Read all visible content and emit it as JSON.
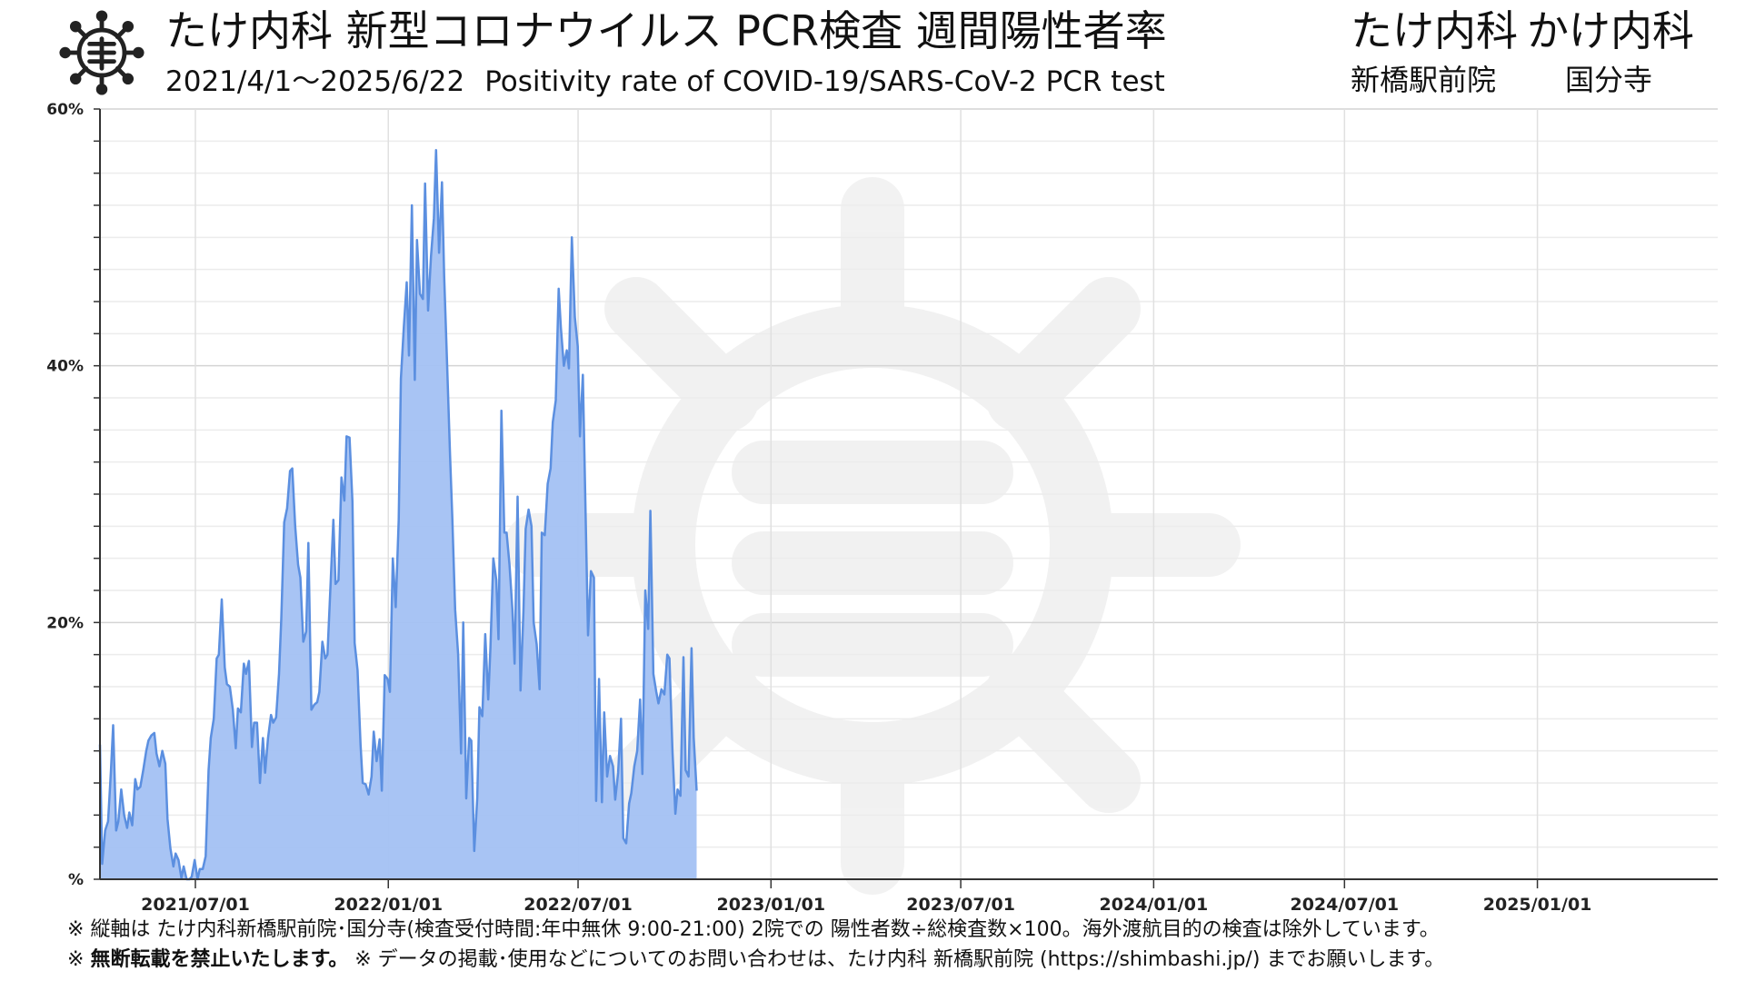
{
  "header": {
    "title": "たけ内科 新型コロナウイルス PCR検査 週間陽性者率",
    "date_range": "2021/4/1〜2025/6/22",
    "title_en": "Positivity rate of COVID-19/SARS-CoV-2 PCR test",
    "clinic1_name": "たけ内科",
    "clinic2_name": "かけ内科",
    "clinic1_branch": "新橋駅前院",
    "clinic2_branch": "国分寺",
    "logo_icon": "virus-logo-icon"
  },
  "footer": {
    "note1": "※ 縦軸は たけ内科新橋駅前院･国分寺(検査受付時間:年中無休 9:00-21:00) 2院での 陽性者数÷総検査数×100。海外渡航目的の検査は除外しています。",
    "note2_prefix": "※ ",
    "note2_bold": "無断転載を禁止いたします。",
    "note2_rest": " ※ データの掲載･使用などについてのお問い合わせは、たけ内科 新橋駅前院 (https://shimbashi.jp/) までお願いします。"
  },
  "chart_data": {
    "type": "area",
    "title": "たけ内科 新型コロナウイルス PCR検査 週間陽性者率",
    "xlabel": "",
    "ylabel": "",
    "x_range": [
      "2021-04-01",
      "2025-06-22"
    ],
    "ylim": [
      0,
      60
    ],
    "y_ticks": [
      0,
      20,
      40,
      60
    ],
    "y_tick_labels": [
      "%",
      "20%",
      "40%",
      "60%"
    ],
    "x_ticks": [
      "2021-07-01",
      "2022-01-01",
      "2022-07-01",
      "2023-01-01",
      "2023-07-01",
      "2024-01-01",
      "2024-07-01",
      "2025-01-01"
    ],
    "x_tick_labels": [
      "2021/07/01",
      "2022/01/01",
      "2022/07/01",
      "2023/01/01",
      "2023/07/01",
      "2024/01/01",
      "2024/07/01",
      "2025/01/01"
    ],
    "grid": true,
    "legend": "none",
    "colors": {
      "line": "#5b8fe0",
      "fill": "#a3c1f3",
      "grid": "#e3e3e3"
    },
    "series": [
      {
        "values": [
          [
            0.0,
            10.5
          ],
          [
            0.3,
            1.2
          ],
          [
            0.7,
            3.8
          ],
          [
            1.1,
            4.5
          ],
          [
            1.5,
            8.5
          ],
          [
            1.8,
            12.0
          ],
          [
            2.2,
            3.8
          ],
          [
            2.5,
            4.5
          ],
          [
            2.9,
            7.0
          ],
          [
            3.3,
            5.0
          ],
          [
            3.7,
            4.0
          ],
          [
            4.0,
            5.2
          ],
          [
            4.4,
            4.2
          ],
          [
            4.8,
            7.8
          ],
          [
            5.1,
            7.0
          ],
          [
            5.5,
            7.2
          ],
          [
            5.9,
            8.5
          ],
          [
            6.3,
            10.0
          ],
          [
            6.6,
            10.8
          ],
          [
            7.0,
            11.2
          ],
          [
            7.4,
            11.4
          ],
          [
            7.7,
            9.8
          ],
          [
            8.1,
            8.8
          ],
          [
            8.5,
            10.0
          ],
          [
            8.9,
            9.0
          ],
          [
            9.2,
            4.7
          ],
          [
            9.6,
            2.4
          ],
          [
            10.0,
            1.0
          ],
          [
            10.3,
            2.0
          ],
          [
            10.7,
            1.5
          ],
          [
            11.1,
            0.1
          ],
          [
            11.4,
            1.0
          ],
          [
            11.8,
            0.0
          ],
          [
            12.2,
            0.0
          ],
          [
            12.5,
            0.2
          ],
          [
            12.9,
            1.5
          ],
          [
            13.3,
            0.0
          ],
          [
            13.6,
            0.8
          ],
          [
            14.0,
            0.8
          ],
          [
            14.4,
            1.8
          ],
          [
            14.8,
            8.5
          ],
          [
            15.1,
            11.0
          ],
          [
            15.5,
            12.5
          ],
          [
            15.9,
            17.2
          ],
          [
            16.2,
            17.5
          ],
          [
            16.6,
            21.8
          ],
          [
            17.0,
            16.5
          ],
          [
            17.3,
            15.2
          ],
          [
            17.7,
            15.0
          ],
          [
            18.1,
            13.2
          ],
          [
            18.5,
            10.2
          ],
          [
            18.8,
            13.3
          ],
          [
            19.2,
            13.0
          ],
          [
            19.6,
            16.8
          ],
          [
            19.9,
            16.0
          ],
          [
            20.3,
            17.0
          ],
          [
            20.7,
            10.3
          ],
          [
            21.0,
            12.2
          ],
          [
            21.4,
            12.2
          ],
          [
            21.8,
            7.5
          ],
          [
            22.2,
            11.0
          ],
          [
            22.5,
            8.3
          ],
          [
            22.9,
            11.0
          ],
          [
            23.3,
            12.8
          ],
          [
            23.6,
            12.2
          ],
          [
            24.0,
            12.6
          ],
          [
            24.4,
            16.0
          ],
          [
            24.7,
            20.3
          ],
          [
            25.1,
            27.8
          ],
          [
            25.5,
            28.9
          ],
          [
            25.9,
            31.8
          ],
          [
            26.2,
            32.0
          ],
          [
            26.6,
            27.5
          ],
          [
            27.0,
            24.5
          ],
          [
            27.3,
            23.5
          ],
          [
            27.7,
            18.5
          ],
          [
            28.1,
            19.3
          ],
          [
            28.4,
            26.2
          ],
          [
            28.8,
            13.2
          ],
          [
            29.2,
            13.6
          ],
          [
            29.6,
            13.8
          ],
          [
            29.9,
            14.6
          ],
          [
            30.3,
            18.5
          ],
          [
            30.7,
            17.2
          ],
          [
            31.0,
            17.5
          ],
          [
            31.4,
            22.8
          ],
          [
            31.8,
            28.0
          ],
          [
            32.1,
            23.0
          ],
          [
            32.5,
            23.3
          ],
          [
            32.9,
            31.3
          ],
          [
            33.3,
            29.5
          ],
          [
            33.6,
            34.5
          ],
          [
            34.0,
            34.4
          ],
          [
            34.4,
            29.4
          ],
          [
            34.7,
            18.4
          ],
          [
            35.1,
            16.3
          ],
          [
            35.5,
            10.5
          ],
          [
            35.8,
            7.5
          ],
          [
            36.2,
            7.4
          ],
          [
            36.6,
            6.6
          ],
          [
            37.0,
            8.0
          ],
          [
            37.3,
            11.5
          ],
          [
            37.7,
            9.2
          ],
          [
            38.1,
            10.9
          ],
          [
            38.4,
            6.9
          ],
          [
            38.8,
            15.9
          ],
          [
            39.2,
            15.6
          ],
          [
            39.5,
            14.6
          ],
          [
            39.9,
            25.0
          ],
          [
            40.3,
            21.2
          ],
          [
            40.7,
            28.0
          ],
          [
            41.0,
            39.0
          ],
          [
            41.4,
            43.0
          ],
          [
            41.8,
            46.5
          ],
          [
            42.1,
            40.8
          ],
          [
            42.5,
            52.5
          ],
          [
            42.9,
            38.9
          ],
          [
            43.2,
            49.8
          ],
          [
            43.6,
            45.6
          ],
          [
            44.0,
            45.2
          ],
          [
            44.3,
            54.2
          ],
          [
            44.7,
            44.3
          ],
          [
            45.1,
            48.5
          ],
          [
            45.5,
            51.5
          ],
          [
            45.8,
            56.8
          ],
          [
            46.2,
            48.8
          ],
          [
            46.6,
            54.3
          ],
          [
            46.9,
            47.0
          ],
          [
            47.3,
            40.0
          ],
          [
            47.7,
            33.0
          ],
          [
            48.0,
            28.3
          ],
          [
            48.4,
            21.0
          ],
          [
            48.8,
            17.5
          ],
          [
            49.2,
            9.8
          ],
          [
            49.5,
            20.0
          ],
          [
            49.9,
            6.3
          ],
          [
            50.3,
            11.0
          ],
          [
            50.6,
            10.8
          ],
          [
            51.0,
            2.2
          ],
          [
            51.4,
            6.3
          ],
          [
            51.7,
            13.4
          ],
          [
            52.1,
            12.7
          ],
          [
            52.5,
            19.1
          ],
          [
            52.9,
            14.0
          ],
          [
            53.2,
            18.0
          ],
          [
            53.6,
            25.0
          ],
          [
            54.0,
            23.3
          ],
          [
            54.3,
            18.7
          ],
          [
            54.7,
            36.5
          ],
          [
            55.1,
            27.0
          ],
          [
            55.4,
            27.0
          ],
          [
            55.8,
            24.5
          ],
          [
            56.2,
            21.0
          ],
          [
            56.5,
            16.8
          ],
          [
            56.9,
            29.8
          ],
          [
            57.3,
            14.7
          ],
          [
            57.7,
            20.8
          ],
          [
            58.0,
            27.3
          ],
          [
            58.4,
            28.8
          ],
          [
            58.8,
            27.5
          ],
          [
            59.1,
            20.0
          ],
          [
            59.5,
            18.3
          ],
          [
            59.9,
            14.8
          ],
          [
            60.2,
            27.0
          ],
          [
            60.6,
            26.8
          ],
          [
            61.0,
            30.8
          ],
          [
            61.4,
            32.0
          ],
          [
            61.7,
            35.6
          ],
          [
            62.1,
            37.3
          ],
          [
            62.5,
            46.0
          ],
          [
            62.8,
            43.0
          ],
          [
            63.2,
            40.0
          ],
          [
            63.6,
            41.2
          ],
          [
            63.9,
            39.8
          ],
          [
            64.3,
            50.0
          ],
          [
            64.7,
            43.8
          ],
          [
            65.1,
            41.5
          ],
          [
            65.4,
            34.5
          ],
          [
            65.8,
            39.3
          ],
          [
            66.2,
            27.5
          ],
          [
            66.5,
            19.0
          ],
          [
            66.9,
            24.0
          ],
          [
            67.3,
            23.5
          ],
          [
            67.6,
            6.1
          ],
          [
            68.0,
            15.6
          ],
          [
            68.4,
            6.0
          ],
          [
            68.7,
            13.0
          ],
          [
            69.1,
            8.0
          ],
          [
            69.5,
            9.6
          ],
          [
            69.9,
            8.8
          ],
          [
            70.2,
            6.2
          ],
          [
            70.6,
            8.3
          ],
          [
            71.0,
            12.5
          ],
          [
            71.3,
            3.2
          ],
          [
            71.7,
            2.8
          ],
          [
            72.1,
            5.9
          ],
          [
            72.4,
            6.7
          ],
          [
            72.8,
            8.8
          ],
          [
            73.2,
            10.0
          ],
          [
            73.6,
            14.0
          ],
          [
            73.9,
            8.2
          ],
          [
            74.3,
            22.5
          ],
          [
            74.7,
            19.5
          ],
          [
            75.0,
            28.7
          ],
          [
            75.4,
            16.0
          ],
          [
            75.8,
            14.6
          ],
          [
            76.1,
            13.7
          ],
          [
            76.5,
            14.8
          ],
          [
            76.9,
            14.4
          ],
          [
            77.3,
            17.5
          ],
          [
            77.6,
            17.2
          ],
          [
            78.0,
            10.0
          ],
          [
            78.4,
            5.1
          ],
          [
            78.7,
            7.0
          ],
          [
            79.1,
            6.5
          ],
          [
            79.5,
            17.3
          ],
          [
            79.8,
            8.5
          ],
          [
            80.2,
            8.0
          ],
          [
            80.6,
            18.0
          ],
          [
            80.9,
            11.0
          ],
          [
            81.3,
            6.9
          ]
        ]
      }
    ]
  }
}
